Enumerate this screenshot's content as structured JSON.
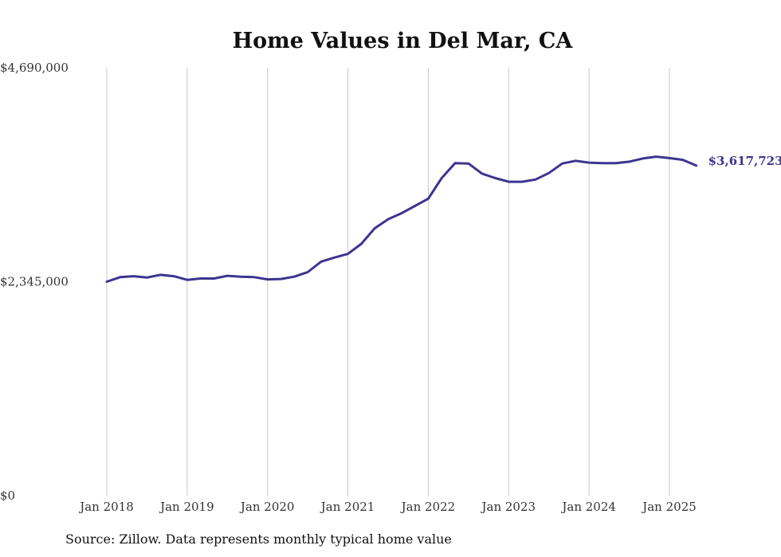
{
  "chart_data": {
    "type": "line",
    "title": "Home Values in Del Mar, CA",
    "xlabel": "",
    "ylabel": "",
    "ylim": [
      0,
      4690000
    ],
    "y_tick_labels": [
      "$0",
      "$2,345,000",
      "$4,690,000"
    ],
    "y_ticks": [
      0,
      2345000,
      4690000
    ],
    "x_tick_labels": [
      "Jan 2018",
      "Jan 2019",
      "Jan 2020",
      "Jan 2021",
      "Jan 2022",
      "Jan 2023",
      "Jan 2024",
      "Jan 2025"
    ],
    "x_ticks": [
      "2018-01",
      "2019-01",
      "2020-01",
      "2021-01",
      "2022-01",
      "2023-01",
      "2024-01",
      "2025-01"
    ],
    "x_range": [
      "2018-01",
      "2025-05"
    ],
    "grid": "vertical",
    "line_color": "#3d3590",
    "series": [
      {
        "x": [
          "2018-01",
          "2018-03",
          "2018-05",
          "2018-07",
          "2018-09",
          "2018-11",
          "2019-01",
          "2019-03",
          "2019-05",
          "2019-07",
          "2019-09",
          "2019-11",
          "2020-01",
          "2020-03",
          "2020-05",
          "2020-07",
          "2020-09",
          "2020-11",
          "2021-01",
          "2021-03",
          "2021-05",
          "2021-07",
          "2021-09",
          "2021-11",
          "2022-01",
          "2022-03",
          "2022-05",
          "2022-07",
          "2022-09",
          "2022-11",
          "2023-01",
          "2023-03",
          "2023-05",
          "2023-07",
          "2023-09",
          "2023-11",
          "2024-01",
          "2024-03",
          "2024-05",
          "2024-07",
          "2024-09",
          "2024-11",
          "2025-01",
          "2025-03",
          "2025-05"
        ],
        "values": [
          2345000,
          2395000,
          2405000,
          2390000,
          2420000,
          2405000,
          2365000,
          2380000,
          2380000,
          2410000,
          2400000,
          2395000,
          2370000,
          2375000,
          2400000,
          2450000,
          2565000,
          2610000,
          2650000,
          2760000,
          2930000,
          3030000,
          3095000,
          3175000,
          3255000,
          3480000,
          3645000,
          3640000,
          3530000,
          3480000,
          3440000,
          3440000,
          3465000,
          3535000,
          3640000,
          3670000,
          3650000,
          3645000,
          3645000,
          3660000,
          3695000,
          3715000,
          3700000,
          3680000,
          3617723
        ]
      }
    ],
    "end_label": "$3,617,723"
  },
  "source_note": "Source: Zillow. Data represents monthly typical home value"
}
